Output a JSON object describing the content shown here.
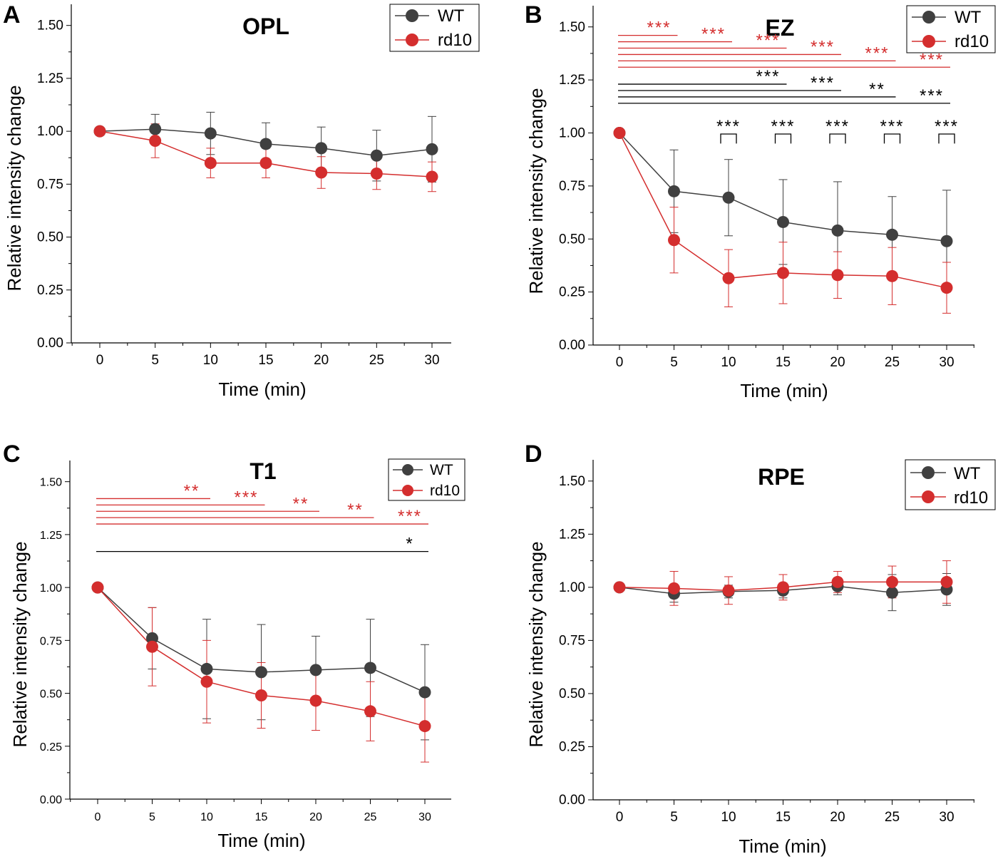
{
  "colors": {
    "WT": "#404040",
    "rd10": "#d42e2e",
    "sig_black": "#000000",
    "sig_red": "#d42e2e"
  },
  "chart_data": [
    {
      "panel": "A",
      "type": "line",
      "title": "OPL",
      "xlabel": "Time (min)",
      "ylabel": "Relative intensity change",
      "x": [
        0,
        5,
        10,
        15,
        20,
        25,
        30
      ],
      "xticks": [
        "0",
        "5",
        "10",
        "15",
        "20",
        "25",
        "30"
      ],
      "yticks": [
        "0.00",
        "0.25",
        "0.50",
        "0.75",
        "1.00",
        "1.25",
        "1.50"
      ],
      "ylim": [
        0,
        1.6
      ],
      "legend": [
        "WT",
        "rd10"
      ],
      "legend_position": "top-right",
      "series": [
        {
          "name": "WT",
          "values": [
            1.0,
            1.01,
            0.99,
            0.94,
            0.92,
            0.885,
            0.915
          ],
          "err": [
            0,
            0.07,
            0.1,
            0.1,
            0.1,
            0.12,
            0.155
          ]
        },
        {
          "name": "rd10",
          "values": [
            1.0,
            0.955,
            0.85,
            0.85,
            0.805,
            0.8,
            0.785
          ],
          "err": [
            0,
            0.08,
            0.07,
            0.07,
            0.075,
            0.075,
            0.07
          ]
        }
      ],
      "significance": [],
      "brackets": []
    },
    {
      "panel": "B",
      "type": "line",
      "title": "EZ",
      "xlabel": "Time (min)",
      "ylabel": "Relative intensity change",
      "x": [
        0,
        5,
        10,
        15,
        20,
        25,
        30
      ],
      "xticks": [
        "0",
        "5",
        "10",
        "15",
        "20",
        "25",
        "30"
      ],
      "yticks": [
        "0.00",
        "0.25",
        "0.50",
        "0.75",
        "1.00",
        "1.25",
        "1.50"
      ],
      "ylim": [
        0,
        1.6
      ],
      "legend": [
        "WT",
        "rd10"
      ],
      "legend_position": "top-right",
      "series": [
        {
          "name": "WT",
          "values": [
            1.0,
            0.725,
            0.695,
            0.58,
            0.54,
            0.52,
            0.49
          ],
          "err": [
            0,
            0.195,
            0.18,
            0.2,
            0.23,
            0.18,
            0.24
          ]
        },
        {
          "name": "rd10",
          "values": [
            1.0,
            0.495,
            0.315,
            0.34,
            0.33,
            0.325,
            0.27
          ],
          "err": [
            0,
            0.155,
            0.135,
            0.145,
            0.11,
            0.135,
            0.12
          ]
        }
      ],
      "significance": [
        {
          "group": "rd10",
          "from": 0,
          "to": 5,
          "y": 1.46,
          "label": "***"
        },
        {
          "group": "rd10",
          "from": 0,
          "to": 10,
          "y": 1.43,
          "label": "***"
        },
        {
          "group": "rd10",
          "from": 0,
          "to": 15,
          "y": 1.4,
          "label": "***"
        },
        {
          "group": "rd10",
          "from": 0,
          "to": 20,
          "y": 1.37,
          "label": "***"
        },
        {
          "group": "rd10",
          "from": 0,
          "to": 25,
          "y": 1.34,
          "label": "***"
        },
        {
          "group": "rd10",
          "from": 0,
          "to": 30,
          "y": 1.31,
          "label": "***"
        },
        {
          "group": "WT",
          "from": 0,
          "to": 15,
          "y": 1.23,
          "label": "***"
        },
        {
          "group": "WT",
          "from": 0,
          "to": 20,
          "y": 1.2,
          "label": "***"
        },
        {
          "group": "WT",
          "from": 0,
          "to": 25,
          "y": 1.17,
          "label": "**"
        },
        {
          "group": "WT",
          "from": 0,
          "to": 30,
          "y": 1.14,
          "label": "***"
        }
      ],
      "brackets": [
        {
          "x": 10,
          "label": "***"
        },
        {
          "x": 15,
          "label": "***"
        },
        {
          "x": 20,
          "label": "***"
        },
        {
          "x": 25,
          "label": "***"
        },
        {
          "x": 30,
          "label": "***"
        }
      ]
    },
    {
      "panel": "C",
      "type": "line",
      "title": "T1",
      "xlabel": "Time (min)",
      "ylabel": "Relative intensity change",
      "x": [
        0,
        5,
        10,
        15,
        20,
        25,
        30
      ],
      "xticks": [
        "0",
        "5",
        "10",
        "15",
        "20",
        "25",
        "30"
      ],
      "yticks": [
        "0.00",
        "0.25",
        "0.50",
        "0.75",
        "1.00",
        "1.25",
        "1.50"
      ],
      "ylim": [
        0,
        1.6
      ],
      "legend": [
        "WT",
        "rd10"
      ],
      "legend_position": "top-right",
      "series": [
        {
          "name": "WT",
          "values": [
            1.0,
            0.76,
            0.615,
            0.6,
            0.61,
            0.62,
            0.505
          ],
          "err": [
            0,
            0.145,
            0.235,
            0.225,
            0.16,
            0.23,
            0.225
          ]
        },
        {
          "name": "rd10",
          "values": [
            1.0,
            0.72,
            0.555,
            0.49,
            0.465,
            0.415,
            0.345
          ],
          "err": [
            0,
            0.185,
            0.195,
            0.155,
            0.14,
            0.14,
            0.17
          ]
        }
      ],
      "significance": [
        {
          "group": "rd10",
          "from": 0,
          "to": 10,
          "y": 1.42,
          "label": "**"
        },
        {
          "group": "rd10",
          "from": 0,
          "to": 15,
          "y": 1.39,
          "label": "***"
        },
        {
          "group": "rd10",
          "from": 0,
          "to": 20,
          "y": 1.36,
          "label": "**"
        },
        {
          "group": "rd10",
          "from": 0,
          "to": 25,
          "y": 1.33,
          "label": "**"
        },
        {
          "group": "rd10",
          "from": 0,
          "to": 30,
          "y": 1.3,
          "label": "***"
        },
        {
          "group": "WT",
          "from": 0,
          "to": 30,
          "y": 1.17,
          "label": "*"
        }
      ],
      "brackets": []
    },
    {
      "panel": "D",
      "type": "line",
      "title": "RPE",
      "xlabel": "Time (min)",
      "ylabel": "Relative intensity change",
      "x": [
        0,
        5,
        10,
        15,
        20,
        25,
        30
      ],
      "xticks": [
        "0",
        "5",
        "10",
        "15",
        "20",
        "25",
        "30"
      ],
      "yticks": [
        "0.00",
        "0.25",
        "0.50",
        "0.75",
        "1.00",
        "1.25",
        "1.50"
      ],
      "ylim": [
        0,
        1.6
      ],
      "legend": [
        "WT",
        "rd10"
      ],
      "legend_position": "top-right",
      "series": [
        {
          "name": "WT",
          "values": [
            1.0,
            0.97,
            0.98,
            0.985,
            1.005,
            0.975,
            0.99
          ],
          "err": [
            0,
            0.04,
            0.03,
            0.035,
            0.04,
            0.085,
            0.075
          ]
        },
        {
          "name": "rd10",
          "values": [
            1.0,
            0.995,
            0.985,
            1.0,
            1.025,
            1.025,
            1.025
          ],
          "err": [
            0,
            0.08,
            0.065,
            0.06,
            0.05,
            0.075,
            0.1
          ]
        }
      ],
      "significance": [],
      "brackets": []
    }
  ]
}
